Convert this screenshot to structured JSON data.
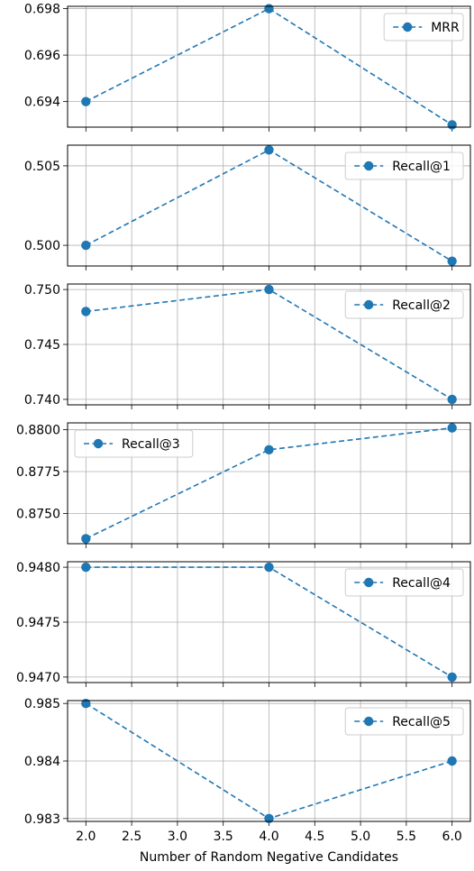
{
  "chart_data": [
    {
      "type": "line",
      "x": [
        2.0,
        4.0,
        6.0
      ],
      "series": [
        {
          "name": "MRR",
          "values": [
            0.694,
            0.698,
            0.693
          ]
        }
      ],
      "ylim": [
        0.6929,
        0.6981
      ],
      "yticks": [
        0.694,
        0.696,
        0.698
      ],
      "ytick_labels": [
        "0.694",
        "0.696",
        "0.698"
      ],
      "legend": "top-right"
    },
    {
      "type": "line",
      "x": [
        2.0,
        4.0,
        6.0
      ],
      "series": [
        {
          "name": "Recall@1",
          "values": [
            0.5,
            0.506,
            0.499
          ]
        }
      ],
      "ylim": [
        0.4987,
        0.5063
      ],
      "yticks": [
        0.5,
        0.505
      ],
      "ytick_labels": [
        "0.500",
        "0.505"
      ],
      "legend": "top-right"
    },
    {
      "type": "line",
      "x": [
        2.0,
        4.0,
        6.0
      ],
      "series": [
        {
          "name": "Recall@2",
          "values": [
            0.748,
            0.75,
            0.74
          ]
        }
      ],
      "ylim": [
        0.7395,
        0.7505
      ],
      "yticks": [
        0.74,
        0.745,
        0.75
      ],
      "ytick_labels": [
        "0.740",
        "0.745",
        "0.750"
      ],
      "legend": "top-right"
    },
    {
      "type": "line",
      "x": [
        2.0,
        4.0,
        6.0
      ],
      "series": [
        {
          "name": "Recall@3",
          "values": [
            0.8735,
            0.8788,
            0.8801
          ]
        }
      ],
      "ylim": [
        0.8732,
        0.8804
      ],
      "yticks": [
        0.875,
        0.8775,
        0.88
      ],
      "ytick_labels": [
        "0.8750",
        "0.8775",
        "0.8800"
      ],
      "legend": "top-left"
    },
    {
      "type": "line",
      "x": [
        2.0,
        4.0,
        6.0
      ],
      "series": [
        {
          "name": "Recall@4",
          "values": [
            0.948,
            0.948,
            0.947
          ]
        }
      ],
      "ylim": [
        0.94695,
        0.94805
      ],
      "yticks": [
        0.947,
        0.9475,
        0.948
      ],
      "ytick_labels": [
        "0.9470",
        "0.9475",
        "0.9480"
      ],
      "legend": "top-right"
    },
    {
      "type": "line",
      "x": [
        2.0,
        4.0,
        6.0
      ],
      "series": [
        {
          "name": "Recall@5",
          "values": [
            0.985,
            0.983,
            0.984
          ]
        }
      ],
      "ylim": [
        0.98295,
        0.98505
      ],
      "yticks": [
        0.983,
        0.984,
        0.985
      ],
      "ytick_labels": [
        "0.983",
        "0.984",
        "0.985"
      ],
      "legend": "top-right"
    }
  ],
  "shared_x": {
    "xlim": [
      1.8,
      6.2
    ],
    "xticks": [
      2.0,
      2.5,
      3.0,
      3.5,
      4.0,
      4.5,
      5.0,
      5.5,
      6.0
    ],
    "xtick_labels": [
      "2.0",
      "2.5",
      "3.0",
      "3.5",
      "4.0",
      "4.5",
      "5.0",
      "5.5",
      "6.0"
    ],
    "xlabel": "Number of Random Negative Candidates"
  },
  "style": {
    "line_color": "#1f77b4",
    "line_style": "dashed",
    "marker": "circle",
    "grid": true,
    "grid_color": "#b0b0b0"
  }
}
